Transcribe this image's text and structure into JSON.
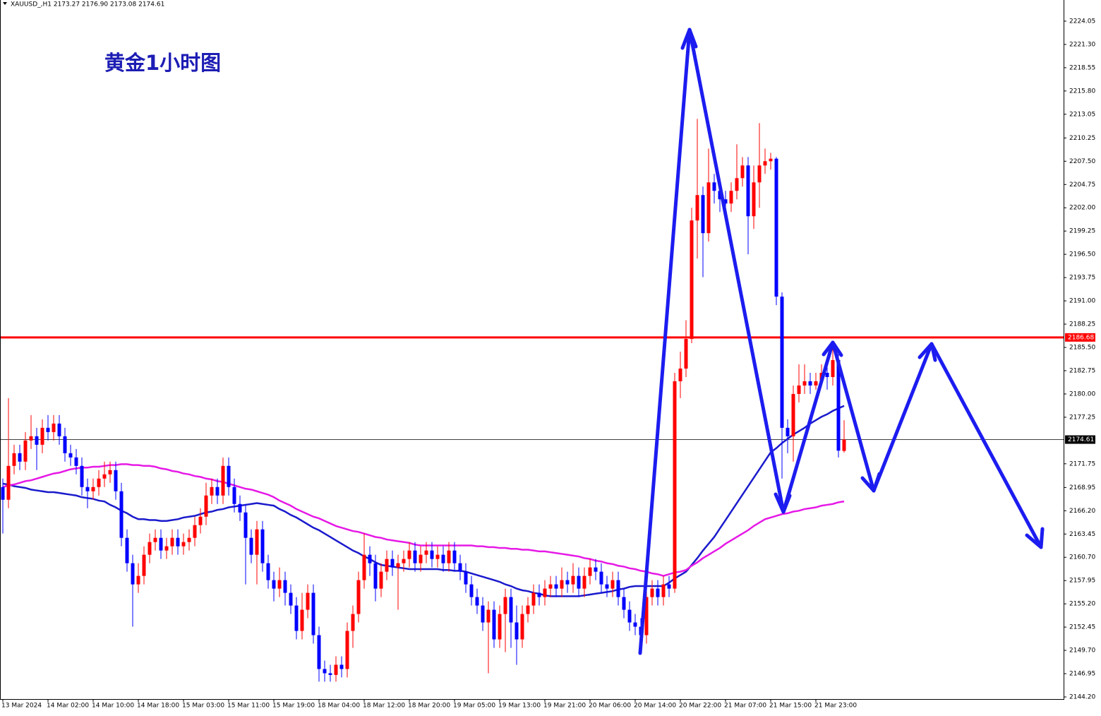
{
  "chart_data": {
    "type": "candlestick",
    "header": "XAUUSD_,H1  2173.27 2176.90 2173.08 2174.61",
    "title": "黄金1小时图",
    "up_color": "#ff0000",
    "down_color": "#0000ff",
    "ylim": [
      2143.95,
      2226.55
    ],
    "yticks": [
      2224.05,
      {
        "value": 2221.3,
        "label": "2221.30"
      },
      2218.55,
      {
        "value": 2215.8,
        "label": "2215.80"
      },
      2213.05,
      2210.25,
      {
        "value": 2207.5,
        "label": "2207.50"
      },
      2204.75,
      {
        "value": 2202,
        "label": "2202.00"
      },
      2199.25,
      {
        "value": 2196.5,
        "label": "2196.50"
      },
      2193.75,
      {
        "value": 2191,
        "label": "2191.00"
      },
      2188.25,
      {
        "value": 2185.5,
        "label": "2185.50"
      },
      2182.75,
      {
        "value": 2180,
        "label": "2180.00"
      },
      2177.25,
      2171.75,
      2168.95,
      {
        "value": 2166.2,
        "label": "2166.20"
      },
      2163.45,
      {
        "value": 2160.7,
        "label": "2160.70"
      },
      2157.95,
      {
        "value": 2155.2,
        "label": "2155.20"
      },
      2152.45,
      {
        "value": 2149.7,
        "label": "2149.70"
      },
      2146.95,
      {
        "value": 2144.2,
        "label": "2144.20"
      }
    ],
    "levels": [
      {
        "value": 2186.68,
        "color": "#ff0000"
      },
      {
        "value": 2174.61,
        "color": "#000000"
      }
    ],
    "categories": [
      "13 Mar 2024",
      null,
      null,
      null,
      null,
      null,
      null,
      null,
      "14 Mar 02:00",
      null,
      null,
      null,
      null,
      null,
      null,
      null,
      "14 Mar 10:00",
      null,
      null,
      null,
      null,
      null,
      null,
      null,
      "14 Mar 18:00",
      null,
      null,
      null,
      null,
      null,
      null,
      null,
      "15 Mar 03:00",
      null,
      null,
      null,
      null,
      null,
      null,
      null,
      "15 Mar 11:00",
      null,
      null,
      null,
      null,
      null,
      null,
      null,
      "15 Mar 19:00",
      null,
      null,
      null,
      null,
      null,
      null,
      null,
      "18 Mar 04:00",
      null,
      null,
      null,
      null,
      null,
      null,
      null,
      "18 Mar 12:00",
      null,
      null,
      null,
      null,
      null,
      null,
      null,
      "18 Mar 20:00",
      null,
      null,
      null,
      null,
      null,
      null,
      null,
      "19 Mar 05:00",
      null,
      null,
      null,
      null,
      null,
      null,
      null,
      "19 Mar 13:00",
      null,
      null,
      null,
      null,
      null,
      null,
      null,
      "19 Mar 21:00",
      null,
      null,
      null,
      null,
      null,
      null,
      null,
      "20 Mar 06:00",
      null,
      null,
      null,
      null,
      null,
      null,
      null,
      "20 Mar 14:00",
      null,
      null,
      null,
      null,
      null,
      null,
      null,
      "20 Mar 22:00",
      null,
      null,
      null,
      null,
      null,
      null,
      null,
      "21 Mar 07:00",
      null,
      null,
      null,
      null,
      null,
      null,
      null,
      "21 Mar 15:00",
      null,
      null,
      null,
      null,
      null,
      null,
      null,
      "21 Mar 23:00",
      null,
      null,
      null,
      null,
      null
    ],
    "open": [
      2169.0,
      2167.5,
      2171.5,
      2173.0,
      2172.0,
      2174.5,
      2175.0,
      2174.0,
      2176.0,
      2175.5,
      2176.5,
      2175.0,
      2173.0,
      2172.5,
      2171.5,
      2169.0,
      2168.5,
      2169.0,
      2170.0,
      2170.5,
      2171.0,
      2168.5,
      2163.0,
      2160.0,
      2157.5,
      2158.5,
      2161.0,
      2162.5,
      2163.0,
      2161.5,
      2162.0,
      2163.0,
      2162.0,
      2162.5,
      2163.0,
      2164.5,
      2165.5,
      2168.0,
      2169.0,
      2168.0,
      2171.5,
      2169.0,
      2167.0,
      2166.0,
      2163.0,
      2161.0,
      2164.0,
      2160.0,
      2158.0,
      2157.0,
      2158.0,
      2156.5,
      2155.0,
      2152.0,
      2154.5,
      2156.5,
      2151.5,
      2147.5,
      2147.0,
      2146.8,
      2148.0,
      2147.5,
      2152.0,
      2154.0,
      2158.0,
      2161.0,
      2160.0,
      2157.0,
      2159.0,
      2160.5,
      2159.5,
      2160.0,
      2160.5,
      2161.5,
      2160.0,
      2161.0,
      2161.5,
      2160.5,
      2161.0,
      2160.0,
      2161.5,
      2160.0,
      2159.0,
      2157.5,
      2156.0,
      2155.0,
      2153.0,
      2154.5,
      2151.0,
      2154.0,
      2156.0,
      2153.0,
      2151.0,
      2154.0,
      2155.0,
      2156.5,
      2156.0,
      2157.0,
      2157.5,
      2157.0,
      2158.0,
      2157.5,
      2158.5,
      2157.0,
      2158.5,
      2159.5,
      2159.0,
      2157.5,
      2157.0,
      2158.0,
      2156.0,
      2154.5,
      2153.0,
      2152.5,
      2151.5,
      2156.0,
      2157.0,
      2156.0,
      2157.5,
      2157.0,
      2181.5,
      2183.0,
      2186.5,
      2200.5,
      2203.5,
      2199.0,
      2205.0,
      2204.0,
      2203.0,
      2202.5,
      2204.0,
      2205.5,
      2207.0,
      2201.0,
      2205.0,
      2207.0,
      2207.5,
      2207.8,
      2191.5,
      2176.0,
      2175.0,
      2180.0,
      2181.0,
      2181.5,
      2181.0,
      2181.5,
      2182.5,
      2182.0,
      2184.0,
      2173.27
    ],
    "high": [
      2170.0,
      2179.5,
      2174.0,
      2174.0,
      2175.5,
      2177.5,
      2176.0,
      2177.0,
      2177.5,
      2177.5,
      2177.5,
      2176.0,
      2174.0,
      2173.5,
      2172.5,
      2170.0,
      2170.0,
      2171.0,
      2172.0,
      2172.0,
      2172.0,
      2169.5,
      2164.0,
      2161.0,
      2160.0,
      2162.0,
      2163.5,
      2164.0,
      2164.0,
      2163.0,
      2164.0,
      2164.0,
      2163.5,
      2164.0,
      2165.5,
      2166.5,
      2169.5,
      2170.0,
      2170.0,
      2172.5,
      2172.5,
      2170.0,
      2168.0,
      2167.0,
      2164.0,
      2165.0,
      2165.0,
      2161.0,
      2159.0,
      2159.5,
      2159.0,
      2157.5,
      2156.0,
      2156.5,
      2157.5,
      2157.5,
      2152.5,
      2148.5,
      2148.0,
      2149.0,
      2149.0,
      2153.0,
      2155.0,
      2159.0,
      2163.5,
      2162.0,
      2161.0,
      2160.0,
      2161.5,
      2161.5,
      2161.0,
      2161.5,
      2162.5,
      2162.5,
      2162.0,
      2162.5,
      2162.5,
      2162.0,
      2162.0,
      2162.5,
      2162.5,
      2161.0,
      2160.0,
      2158.5,
      2157.0,
      2156.0,
      2155.5,
      2155.5,
      2155.0,
      2157.0,
      2157.0,
      2155.0,
      2155.0,
      2156.0,
      2157.5,
      2157.5,
      2158.0,
      2158.5,
      2158.5,
      2159.5,
      2159.0,
      2160.0,
      2159.5,
      2159.5,
      2160.5,
      2160.5,
      2160.0,
      2158.5,
      2159.0,
      2159.0,
      2157.0,
      2155.5,
      2154.0,
      2153.5,
      2157.0,
      2158.0,
      2158.0,
      2158.5,
      2158.5,
      2182.5,
      2185.0,
      2188.7,
      2202.0,
      2212.5,
      2204.5,
      2209.0,
      2206.0,
      2205.0,
      2204.0,
      2205.0,
      2209.5,
      2208.0,
      2208.0,
      2207.0,
      2212.0,
      2209.0,
      2208.5,
      2208.0,
      2192.0,
      2177.0,
      2181.0,
      2183.5,
      2183.5,
      2182.5,
      2182.5,
      2183.5,
      2184.0,
      2186.0,
      2185.0,
      2176.9
    ],
    "low": [
      2163.5,
      2166.5,
      2170.5,
      2171.0,
      2171.0,
      2173.5,
      2171.0,
      2173.0,
      2174.5,
      2174.5,
      2174.0,
      2172.0,
      2171.5,
      2170.5,
      2168.0,
      2166.5,
      2167.5,
      2168.0,
      2169.0,
      2169.5,
      2167.5,
      2162.0,
      2159.0,
      2152.5,
      2156.5,
      2157.5,
      2160.0,
      2161.5,
      2160.5,
      2160.5,
      2161.0,
      2161.0,
      2161.0,
      2161.5,
      2162.0,
      2163.5,
      2164.5,
      2167.0,
      2167.0,
      2167.0,
      2168.0,
      2166.0,
      2165.0,
      2157.5,
      2160.0,
      2157.5,
      2159.0,
      2157.0,
      2155.5,
      2156.0,
      2155.0,
      2154.0,
      2151.0,
      2151.0,
      2153.5,
      2150.5,
      2146.0,
      2146.0,
      2146.0,
      2146.0,
      2146.5,
      2146.5,
      2150.0,
      2153.0,
      2157.0,
      2158.5,
      2155.5,
      2156.0,
      2158.0,
      2158.5,
      2154.5,
      2159.0,
      2159.5,
      2159.0,
      2159.0,
      2160.0,
      2159.5,
      2159.5,
      2159.0,
      2159.0,
      2159.0,
      2158.0,
      2156.5,
      2155.0,
      2154.0,
      2152.0,
      2147.0,
      2150.0,
      2150.0,
      2149.5,
      2150.0,
      2148.0,
      2150.0,
      2153.0,
      2154.0,
      2155.0,
      2155.0,
      2156.0,
      2156.0,
      2156.0,
      2156.5,
      2156.5,
      2156.0,
      2156.0,
      2157.5,
      2158.0,
      2156.5,
      2156.0,
      2156.0,
      2155.0,
      2153.5,
      2152.0,
      2151.5,
      2149.5,
      2150.5,
      2155.0,
      2155.0,
      2155.0,
      2156.0,
      2156.5,
      2179.5,
      2182.0,
      2186.0,
      2196.0,
      2193.8,
      2198.0,
      2202.5,
      2201.5,
      2201.0,
      2201.5,
      2203.0,
      2204.5,
      2196.5,
      2199.5,
      2202.0,
      2206.0,
      2206.5,
      2190.5,
      2170.0,
      2173.0,
      2172.0,
      2179.0,
      2180.0,
      2180.0,
      2180.5,
      2181.0,
      2180.5,
      2181.0,
      2172.5,
      2173.08
    ],
    "close": [
      2167.5,
      2171.5,
      2173.0,
      2172.0,
      2174.5,
      2175.0,
      2174.0,
      2176.0,
      2175.5,
      2176.5,
      2175.0,
      2173.0,
      2172.5,
      2171.5,
      2169.0,
      2168.5,
      2169.0,
      2170.0,
      2170.5,
      2171.0,
      2168.5,
      2163.0,
      2160.0,
      2157.5,
      2158.5,
      2161.0,
      2162.5,
      2163.0,
      2161.5,
      2162.0,
      2163.0,
      2162.0,
      2162.5,
      2163.0,
      2164.5,
      2165.5,
      2168.0,
      2169.0,
      2168.0,
      2171.5,
      2169.0,
      2167.0,
      2166.0,
      2163.0,
      2161.0,
      2164.0,
      2160.0,
      2158.0,
      2157.0,
      2158.0,
      2156.5,
      2155.0,
      2152.0,
      2154.5,
      2156.5,
      2151.5,
      2147.5,
      2147.0,
      2146.8,
      2148.0,
      2147.5,
      2152.0,
      2154.0,
      2158.0,
      2161.0,
      2160.0,
      2157.0,
      2159.0,
      2160.5,
      2159.5,
      2160.0,
      2160.5,
      2161.5,
      2160.0,
      2161.0,
      2161.5,
      2160.5,
      2161.0,
      2160.0,
      2161.5,
      2160.0,
      2159.0,
      2157.5,
      2156.0,
      2155.0,
      2153.0,
      2154.5,
      2151.0,
      2154.0,
      2156.0,
      2153.0,
      2151.0,
      2154.0,
      2155.0,
      2156.5,
      2156.0,
      2157.0,
      2157.5,
      2157.0,
      2158.0,
      2157.5,
      2158.5,
      2157.0,
      2158.5,
      2159.5,
      2159.0,
      2157.5,
      2157.0,
      2158.0,
      2156.0,
      2154.5,
      2153.0,
      2152.5,
      2151.5,
      2156.0,
      2157.0,
      2156.0,
      2157.5,
      2157.0,
      2181.5,
      2183.0,
      2186.5,
      2200.5,
      2203.5,
      2199.0,
      2205.0,
      2204.0,
      2203.0,
      2202.5,
      2204.0,
      2205.5,
      2207.0,
      2201.0,
      2205.0,
      2207.0,
      2207.5,
      2207.8,
      2191.5,
      2176.0,
      2175.0,
      2180.0,
      2181.0,
      2181.5,
      2181.0,
      2181.5,
      2182.5,
      2182.0,
      2184.0,
      2173.3,
      2174.61
    ],
    "series": [
      {
        "color": "#1a1acc",
        "values": [
          2169.4,
          2169.3,
          2169.1,
          2169.0,
          2168.9,
          2168.7,
          2168.6,
          2168.5,
          2168.4,
          2168.4,
          2168.3,
          2168.2,
          2168.1,
          2168.0,
          2167.8,
          2167.7,
          2167.6,
          2167.4,
          2167.3,
          2166.9,
          2166.6,
          2166.2,
          2165.9,
          2165.5,
          2165.2,
          2165.2,
          2165.1,
          2165.1,
          2165.0,
          2165.0,
          2165.1,
          2165.2,
          2165.4,
          2165.5,
          2165.6,
          2165.8,
          2166.0,
          2166.1,
          2166.3,
          2166.4,
          2166.6,
          2166.7,
          2166.8,
          2166.9,
          2167.0,
          2167.1,
          2167.0,
          2166.9,
          2166.8,
          2166.4,
          2166.1,
          2165.7,
          2165.4,
          2165.0,
          2164.6,
          2164.2,
          2163.9,
          2163.5,
          2163.1,
          2162.7,
          2162.3,
          2161.9,
          2161.5,
          2161.2,
          2160.8,
          2160.5,
          2160.1,
          2159.8,
          2159.7,
          2159.6,
          2159.5,
          2159.4,
          2159.3,
          2159.3,
          2159.3,
          2159.3,
          2159.3,
          2159.3,
          2159.2,
          2159.2,
          2159.1,
          2159.1,
          2159.0,
          2158.8,
          2158.6,
          2158.4,
          2158.2,
          2158.0,
          2157.8,
          2157.5,
          2157.3,
          2157.0,
          2156.8,
          2156.7,
          2156.5,
          2156.4,
          2156.2,
          2156.1,
          2156.1,
          2156.1,
          2156.1,
          2156.1,
          2156.1,
          2156.2,
          2156.3,
          2156.4,
          2156.5,
          2156.6,
          2156.7,
          2156.9,
          2157.0,
          2157.2,
          2157.3,
          2157.3,
          2157.3,
          2157.3,
          2157.3,
          2157.3,
          2157.7,
          2158.2,
          2158.6,
          2159.0,
          2159.8,
          2160.6,
          2161.5,
          2162.3,
          2163.1,
          2164.1,
          2165.1,
          2166.1,
          2167.1,
          2168.1,
          2169.1,
          2170.1,
          2171.1,
          2172.1,
          2173.1,
          2173.6,
          2174.2,
          2174.7,
          2175.2,
          2175.6,
          2176.0,
          2176.5,
          2176.9,
          2177.3,
          2177.6,
          2178.0,
          2178.3,
          2178.6
        ]
      },
      {
        "color": "#e619e6",
        "values": [
          2169.0,
          2169.2,
          2169.3,
          2169.5,
          2169.7,
          2169.8,
          2170.0,
          2170.2,
          2170.4,
          2170.6,
          2170.7,
          2170.9,
          2171.1,
          2171.2,
          2171.3,
          2171.3,
          2171.4,
          2171.4,
          2171.5,
          2171.6,
          2171.6,
          2171.7,
          2171.7,
          2171.6,
          2171.6,
          2171.5,
          2171.5,
          2171.4,
          2171.2,
          2171.1,
          2170.9,
          2170.8,
          2170.6,
          2170.5,
          2170.3,
          2170.2,
          2170.0,
          2169.9,
          2169.7,
          2169.6,
          2169.4,
          2169.2,
          2169.0,
          2168.8,
          2168.7,
          2168.5,
          2168.3,
          2168.1,
          2167.8,
          2167.4,
          2167.1,
          2166.8,
          2166.4,
          2166.1,
          2165.8,
          2165.5,
          2165.3,
          2165.0,
          2164.7,
          2164.4,
          2164.2,
          2164.0,
          2163.8,
          2163.7,
          2163.5,
          2163.3,
          2163.1,
          2163.0,
          2162.8,
          2162.7,
          2162.6,
          2162.5,
          2162.4,
          2162.2,
          2162.1,
          2162.1,
          2162.1,
          2162.1,
          2162.1,
          2162.1,
          2162.1,
          2162.1,
          2162.1,
          2162.1,
          2162.0,
          2162.0,
          2161.9,
          2161.9,
          2161.8,
          2161.8,
          2161.7,
          2161.7,
          2161.6,
          2161.6,
          2161.5,
          2161.4,
          2161.4,
          2161.3,
          2161.2,
          2161.1,
          2161.0,
          2160.9,
          2160.8,
          2160.6,
          2160.5,
          2160.3,
          2160.2,
          2160.0,
          2159.9,
          2159.7,
          2159.6,
          2159.4,
          2159.3,
          2159.1,
          2159.0,
          2158.8,
          2158.7,
          2158.5,
          2158.7,
          2158.9,
          2159.0,
          2159.2,
          2159.7,
          2160.1,
          2160.6,
          2161.0,
          2161.4,
          2161.8,
          2162.3,
          2162.7,
          2163.1,
          2163.5,
          2163.9,
          2164.4,
          2164.8,
          2165.2,
          2165.4,
          2165.6,
          2165.8,
          2165.9,
          2166.1,
          2166.2,
          2166.4,
          2166.5,
          2166.6,
          2166.8,
          2166.9,
          2167.0,
          2167.2,
          2167.3
        ]
      }
    ]
  }
}
